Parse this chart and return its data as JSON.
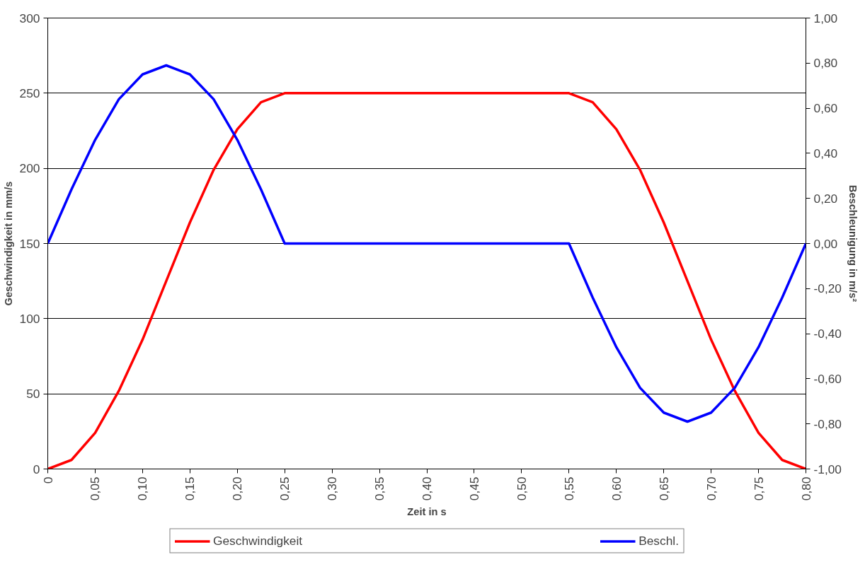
{
  "chart_data": {
    "type": "line",
    "xlabel": "Zeit in s",
    "ylabel": "Geschwindigkeit in mm/s",
    "y2label": "Beschleunigung in m/s²",
    "xlim": [
      0,
      0.8
    ],
    "xticks": [
      {
        "value": 0,
        "label": "0"
      },
      {
        "value": 0.05,
        "label": "0,05"
      },
      {
        "value": 0.1,
        "label": "0,10"
      },
      {
        "value": 0.15,
        "label": "0,15"
      },
      {
        "value": 0.2,
        "label": "0,20"
      },
      {
        "value": 0.25,
        "label": "0,25"
      },
      {
        "value": 0.3,
        "label": "0,30"
      },
      {
        "value": 0.35,
        "label": "0,35"
      },
      {
        "value": 0.4,
        "label": "0,40"
      },
      {
        "value": 0.45,
        "label": "0,45"
      },
      {
        "value": 0.5,
        "label": "0,50"
      },
      {
        "value": 0.55,
        "label": "0,55"
      },
      {
        "value": 0.6,
        "label": "0,60"
      },
      {
        "value": 0.65,
        "label": "0,65"
      },
      {
        "value": 0.7,
        "label": "0,70"
      },
      {
        "value": 0.75,
        "label": "0,75"
      },
      {
        "value": 0.8,
        "label": "0,80"
      }
    ],
    "ylim": [
      0,
      300
    ],
    "yticks": [
      0,
      50,
      100,
      150,
      200,
      250,
      300
    ],
    "y2lim": [
      -1,
      1
    ],
    "y2ticks": [
      {
        "value": -1,
        "label": "-1,00"
      },
      {
        "value": -0.8,
        "label": "-0,80"
      },
      {
        "value": -0.6,
        "label": "-0,60"
      },
      {
        "value": -0.4,
        "label": "-0,40"
      },
      {
        "value": -0.2,
        "label": "-0,20"
      },
      {
        "value": 0,
        "label": "0,00"
      },
      {
        "value": 0.2,
        "label": "0,20"
      },
      {
        "value": 0.4,
        "label": "0,40"
      },
      {
        "value": 0.6,
        "label": "0,60"
      },
      {
        "value": 0.8,
        "label": "0,80"
      },
      {
        "value": 1,
        "label": "1,00"
      }
    ],
    "grid": "y",
    "legend": "bottom",
    "marker": "none",
    "line_style": "solid",
    "series": [
      {
        "name": "Geschwindigkeit",
        "color": "#ff0000",
        "x": [
          0,
          0.025,
          0.05,
          0.075,
          0.1,
          0.125,
          0.15,
          0.175,
          0.2,
          0.225,
          0.25,
          0.55,
          0.575,
          0.6,
          0.625,
          0.65,
          0.675,
          0.7,
          0.725,
          0.75,
          0.775,
          0.8
        ],
        "values": [
          0,
          6,
          24,
          52,
          86,
          125,
          164,
          199,
          226,
          244,
          250,
          250,
          244,
          226,
          199,
          164,
          125,
          86,
          52,
          24,
          6,
          0
        ]
      },
      {
        "name": "Beschl.",
        "color": "#0000ff",
        "axis": "y2",
        "x": [
          0,
          0.025,
          0.05,
          0.075,
          0.1,
          0.125,
          0.15,
          0.175,
          0.2,
          0.225,
          0.25,
          0.55,
          0.575,
          0.6,
          0.625,
          0.65,
          0.675,
          0.7,
          0.725,
          0.75,
          0.775,
          0.8
        ],
        "values": [
          0,
          0.24,
          0.46,
          0.64,
          0.75,
          0.79,
          0.75,
          0.64,
          0.46,
          0.24,
          0,
          0,
          -0.24,
          -0.46,
          -0.64,
          -0.75,
          -0.79,
          -0.75,
          -0.64,
          -0.46,
          -0.24,
          0
        ]
      }
    ]
  }
}
